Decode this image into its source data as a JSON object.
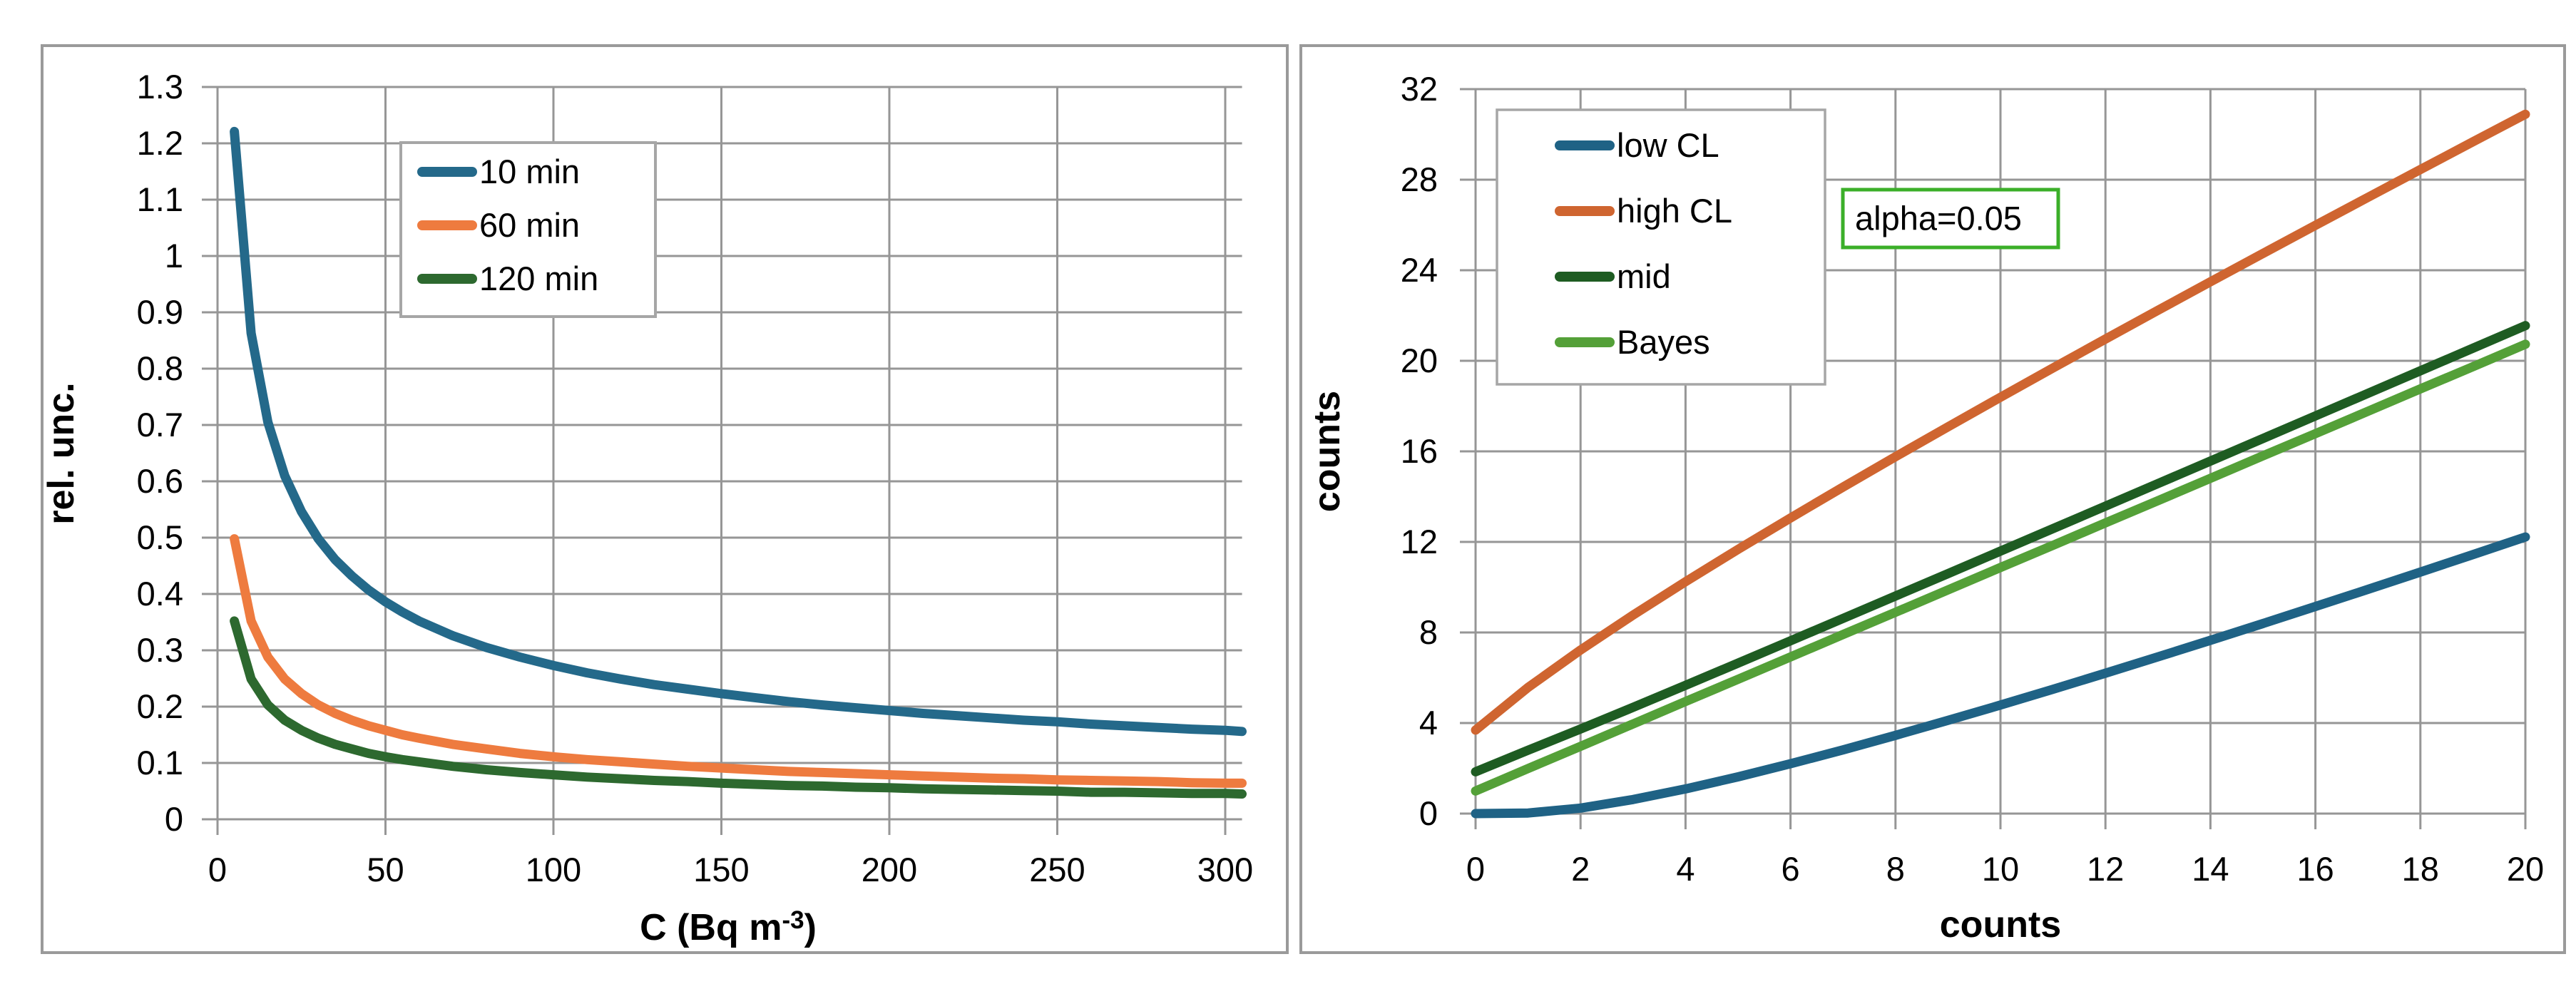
{
  "styles": {
    "background": "#ffffff",
    "grid_color": "#969696",
    "axis_color": "#969696",
    "panel_border_color": "#9a9a9a",
    "legend_border_color": "#a6a6a6",
    "text_color": "#000000",
    "annotation_border_color": "#3baf29"
  },
  "chart_data": [
    {
      "type": "line",
      "title": "",
      "xlabel": "C (Bq m⁻³)",
      "xlabel_base": "C (Bq m",
      "xlabel_sup": "-3",
      "xlabel_close": ")",
      "ylabel": "rel. unc.",
      "xlim": [
        0,
        305
      ],
      "ylim": [
        0,
        1.3
      ],
      "xticks": [
        "0",
        "50",
        "100",
        "150",
        "200",
        "250",
        "300"
      ],
      "yticks": [
        "0",
        "0.1",
        "0.2",
        "0.3",
        "0.4",
        "0.5",
        "0.6",
        "0.7",
        "0.8",
        "0.9",
        "1",
        "1.1",
        "1.2",
        "1.3"
      ],
      "grid": true,
      "legend_position": "upper left inside",
      "x": [
        5,
        10,
        15,
        20,
        25,
        30,
        35,
        40,
        45,
        50,
        55,
        60,
        70,
        80,
        90,
        100,
        110,
        120,
        130,
        140,
        150,
        160,
        170,
        180,
        190,
        200,
        210,
        220,
        230,
        240,
        250,
        260,
        270,
        280,
        290,
        300,
        305
      ],
      "series": [
        {
          "name": "10 min",
          "color": "#24698a",
          "values": [
            1.221,
            0.863,
            0.705,
            0.61,
            0.546,
            0.498,
            0.461,
            0.432,
            0.407,
            0.386,
            0.368,
            0.352,
            0.326,
            0.305,
            0.288,
            0.273,
            0.26,
            0.249,
            0.239,
            0.231,
            0.223,
            0.216,
            0.209,
            0.203,
            0.198,
            0.193,
            0.188,
            0.184,
            0.18,
            0.176,
            0.173,
            0.169,
            0.166,
            0.163,
            0.16,
            0.158,
            0.156
          ]
        },
        {
          "name": "60 min",
          "color": "#ee7b3f",
          "values": [
            0.498,
            0.352,
            0.288,
            0.249,
            0.223,
            0.203,
            0.188,
            0.176,
            0.166,
            0.158,
            0.15,
            0.144,
            0.133,
            0.125,
            0.117,
            0.111,
            0.106,
            0.102,
            0.098,
            0.094,
            0.091,
            0.088,
            0.085,
            0.083,
            0.081,
            0.079,
            0.077,
            0.075,
            0.073,
            0.072,
            0.07,
            0.069,
            0.068,
            0.067,
            0.065,
            0.064,
            0.064
          ]
        },
        {
          "name": "120 min",
          "color": "#2d692f",
          "values": [
            0.352,
            0.249,
            0.203,
            0.176,
            0.158,
            0.144,
            0.133,
            0.125,
            0.117,
            0.111,
            0.106,
            0.102,
            0.094,
            0.088,
            0.083,
            0.079,
            0.075,
            0.072,
            0.069,
            0.067,
            0.064,
            0.062,
            0.06,
            0.059,
            0.057,
            0.056,
            0.054,
            0.053,
            0.052,
            0.051,
            0.05,
            0.048,
            0.048,
            0.047,
            0.046,
            0.046,
            0.045
          ]
        }
      ]
    },
    {
      "type": "line",
      "title": "",
      "xlabel": "counts",
      "ylabel": "counts",
      "xlim": [
        0,
        20
      ],
      "ylim": [
        0,
        32
      ],
      "xticks": [
        "0",
        "2",
        "4",
        "6",
        "8",
        "10",
        "12",
        "14",
        "16",
        "18",
        "20"
      ],
      "yticks": [
        "0",
        "4",
        "8",
        "12",
        "16",
        "20",
        "24",
        "28",
        "32"
      ],
      "grid": true,
      "legend_position": "upper left inside",
      "annotation": {
        "text": "alpha=0.05",
        "border_color": "#3baf29"
      },
      "x": [
        0,
        1,
        2,
        3,
        4,
        5,
        6,
        7,
        8,
        9,
        10,
        11,
        12,
        13,
        14,
        15,
        16,
        17,
        18,
        19,
        20
      ],
      "series": [
        {
          "name": "low CL",
          "color": "#1f6285",
          "values": [
            0,
            0.025,
            0.242,
            0.619,
            1.09,
            1.623,
            2.202,
            2.814,
            3.454,
            4.115,
            4.795,
            5.491,
            6.201,
            6.922,
            7.654,
            8.395,
            9.145,
            9.903,
            10.668,
            11.439,
            12.217
          ]
        },
        {
          "name": "high CL",
          "color": "#cf6530",
          "values": [
            3.689,
            5.572,
            7.225,
            8.767,
            10.242,
            11.668,
            13.059,
            14.423,
            15.763,
            17.085,
            18.39,
            19.682,
            20.962,
            22.23,
            23.49,
            24.74,
            25.983,
            27.219,
            28.448,
            29.671,
            30.888
          ]
        },
        {
          "name": "mid",
          "color": "#1e5c22",
          "values": [
            1.845,
            2.799,
            3.734,
            4.693,
            5.666,
            6.646,
            7.631,
            8.619,
            9.609,
            10.6,
            11.593,
            12.587,
            13.582,
            14.576,
            15.572,
            16.568,
            17.564,
            18.561,
            19.558,
            20.555,
            21.553
          ]
        },
        {
          "name": "Bayes",
          "color": "#54a038",
          "values": [
            1.0,
            1.99,
            2.97,
            3.96,
            4.95,
            5.93,
            6.92,
            7.91,
            8.89,
            9.88,
            10.87,
            11.85,
            12.84,
            13.82,
            14.81,
            15.8,
            16.78,
            17.77,
            18.76,
            19.74,
            20.73
          ]
        }
      ]
    }
  ]
}
